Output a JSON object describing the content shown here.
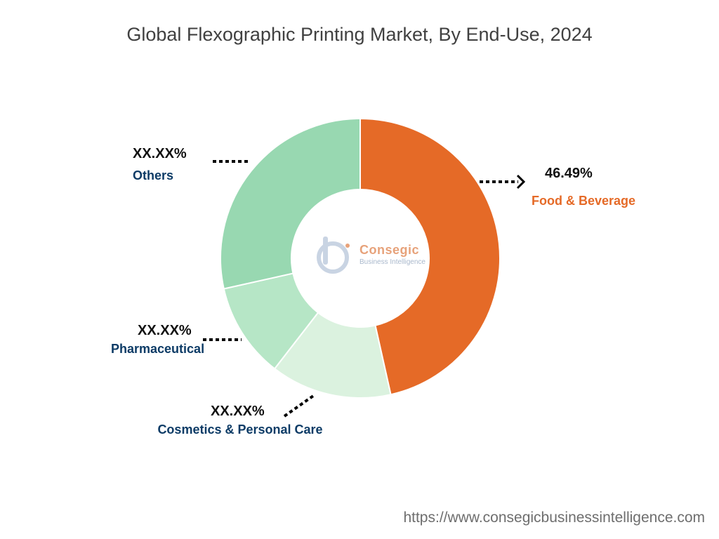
{
  "title": "Global Flexographic Printing Market, By End-Use, 2024",
  "source_url": "https://www.consegicbusinessintelligence.com",
  "logo": {
    "name": "Consegic",
    "tagline": "Business Intelligence"
  },
  "colors": {
    "food_beverage": "#e56a27",
    "cosmetics": "#dbf2df",
    "pharmaceutical": "#b6e6c6",
    "others": "#98d8b1",
    "label_value": "#111111",
    "label_category": "#0d3b66",
    "label_food": "#e56a27"
  },
  "chart_data": {
    "type": "pie",
    "donut": true,
    "title": "Global Flexographic Printing Market, By End-Use, 2024",
    "slices": [
      {
        "name": "Food & Beverage",
        "value": 46.49,
        "label": "46.49%"
      },
      {
        "name": "Cosmetics & Personal Care",
        "value": 14.0,
        "label": "XX.XX%"
      },
      {
        "name": "Pharmaceutical",
        "value": 11.0,
        "label": "XX.XX%"
      },
      {
        "name": "Others",
        "value": 28.51,
        "label": "XX.XX%"
      }
    ]
  },
  "labels": {
    "food": {
      "pct": "46.49%",
      "name": "Food & Beverage"
    },
    "cosmetics": {
      "pct": "XX.XX%",
      "name": "Cosmetics & Personal Care"
    },
    "pharma": {
      "pct": "XX.XX%",
      "name": "Pharmaceutical"
    },
    "others": {
      "pct": "XX.XX%",
      "name": "Others"
    }
  }
}
